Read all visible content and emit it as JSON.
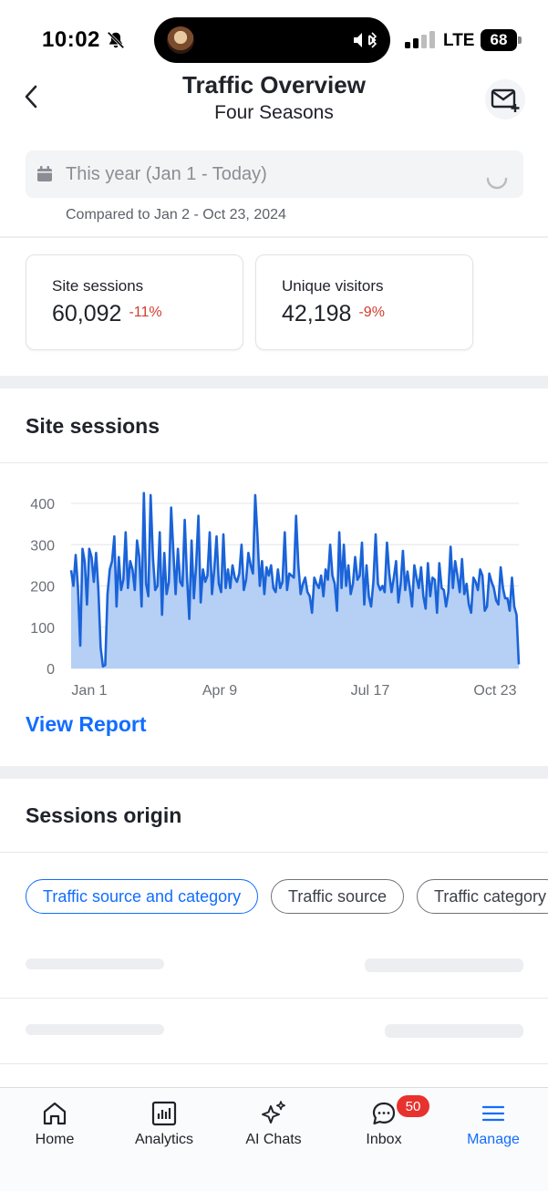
{
  "status_bar": {
    "time": "10:02",
    "network": "LTE",
    "battery": "68"
  },
  "header": {
    "title": "Traffic Overview",
    "subtitle": "Four Seasons"
  },
  "date_range": {
    "label": "This year (Jan 1 - Today)",
    "compare": "Compared to Jan 2 - Oct 23, 2024"
  },
  "stats": [
    {
      "label": "Site sessions",
      "value": "60,092",
      "change": "-11%"
    },
    {
      "label": "Unique visitors",
      "value": "42,198",
      "change": "-9%"
    }
  ],
  "sessions_section": {
    "title": "Site sessions",
    "view_report": "View Report"
  },
  "chart_data": {
    "type": "area",
    "title": "Site sessions",
    "y_ticks": [
      "400",
      "300",
      "200",
      "100",
      "0"
    ],
    "x_ticks": [
      "Jan 1",
      "Apr 9",
      "Jul 17",
      "Oct 23"
    ],
    "ylim": [
      0,
      450
    ],
    "grid": true,
    "colors": {
      "line": "#1a63d8",
      "fill": "#b5cff5"
    },
    "values": [
      238,
      200,
      275,
      195,
      55,
      290,
      258,
      155,
      290,
      270,
      210,
      280,
      190,
      50,
      5,
      8,
      180,
      240,
      260,
      320,
      150,
      270,
      190,
      215,
      330,
      195,
      260,
      240,
      190,
      310,
      270,
      150,
      425,
      205,
      175,
      420,
      270,
      190,
      200,
      330,
      130,
      280,
      180,
      210,
      390,
      280,
      180,
      290,
      210,
      200,
      360,
      220,
      120,
      310,
      170,
      250,
      370,
      160,
      240,
      210,
      225,
      330,
      180,
      240,
      320,
      205,
      185,
      325,
      195,
      240,
      195,
      250,
      220,
      210,
      230,
      300,
      190,
      215,
      280,
      250,
      230,
      420,
      320,
      200,
      260,
      180,
      245,
      225,
      250,
      195,
      185,
      240,
      195,
      210,
      330,
      190,
      230,
      225,
      220,
      370,
      250,
      180,
      205,
      220,
      185,
      175,
      135,
      220,
      205,
      195,
      225,
      175,
      240,
      215,
      300,
      225,
      205,
      140,
      330,
      195,
      300,
      200,
      250,
      180,
      205,
      270,
      215,
      225,
      305,
      155,
      250,
      175,
      150,
      210,
      325,
      205,
      190,
      200,
      185,
      305,
      230,
      185,
      220,
      260,
      160,
      205,
      285,
      190,
      235,
      195,
      150,
      250,
      220,
      195,
      245,
      175,
      145,
      255,
      175,
      220,
      215,
      135,
      255,
      195,
      190,
      150,
      185,
      295,
      195,
      260,
      225,
      185,
      265,
      180,
      205,
      155,
      135,
      220,
      210,
      190,
      240,
      225,
      140,
      150,
      230,
      210,
      195,
      165,
      155,
      245,
      195,
      170,
      170,
      140,
      220,
      150,
      130,
      10
    ]
  },
  "origin_section": {
    "title": "Sessions origin",
    "chips": [
      "Traffic source and category",
      "Traffic source",
      "Traffic category"
    ]
  },
  "tabs": [
    {
      "label": "Home",
      "icon": "home-icon"
    },
    {
      "label": "Analytics",
      "icon": "analytics-icon"
    },
    {
      "label": "AI Chats",
      "icon": "sparkle-icon"
    },
    {
      "label": "Inbox",
      "icon": "chat-bubble-icon",
      "badge": "50"
    },
    {
      "label": "Manage",
      "icon": "menu-icon"
    }
  ]
}
